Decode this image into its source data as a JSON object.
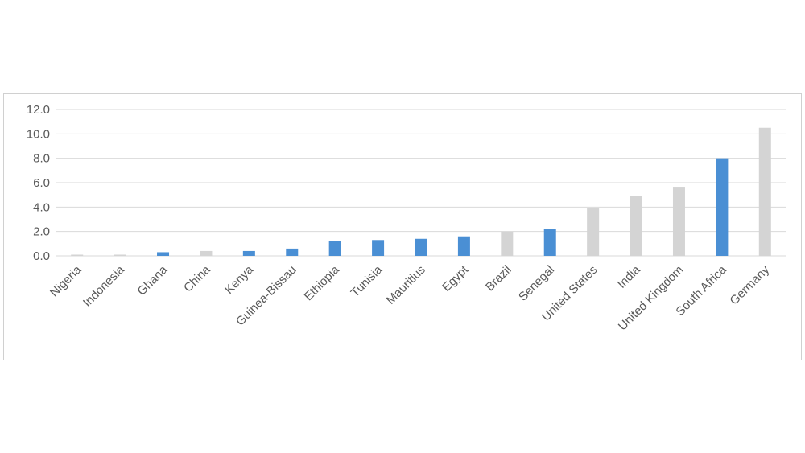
{
  "chart_data": {
    "type": "bar",
    "categories": [
      "Nigeria",
      "Indonesia",
      "Ghana",
      "China",
      "Kenya",
      "Guinea-Bissau",
      "Ethiopia",
      "Tunisia",
      "Mauritius",
      "Egypt",
      "Brazil",
      "Senegal",
      "United States",
      "India",
      "United Kingdom",
      "South Africa",
      "Germany"
    ],
    "values": [
      0.1,
      0.1,
      0.3,
      0.4,
      0.4,
      0.6,
      1.2,
      1.3,
      1.4,
      1.6,
      2.0,
      2.2,
      3.9,
      4.9,
      5.6,
      8.0,
      10.5
    ],
    "highlighted": [
      false,
      false,
      true,
      false,
      true,
      true,
      true,
      true,
      true,
      true,
      false,
      true,
      false,
      false,
      false,
      true,
      false
    ],
    "ylim": [
      0,
      12
    ],
    "yticks": [
      "0.0",
      "2.0",
      "4.0",
      "6.0",
      "8.0",
      "10.0",
      "12.0"
    ],
    "grid": true,
    "title": "",
    "xlabel": "",
    "ylabel": "",
    "colors": {
      "highlight": "#4a8fd4",
      "default": "#d4d4d4",
      "grid": "#d9d9d9",
      "axis_text": "#595959"
    }
  }
}
